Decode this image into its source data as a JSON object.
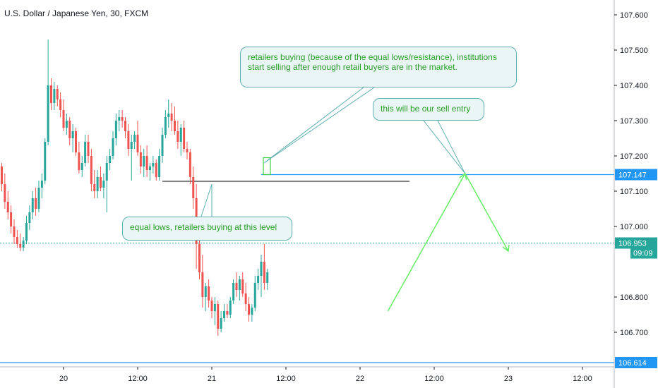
{
  "title": "U.S. Dollar / Japanese Yen, 30, FXCM",
  "colors": {
    "up": "#26a69a",
    "down": "#ef5350",
    "blue_line": "#2196f3",
    "arrow_green": "#66ee66",
    "callout_text": "#2a9d2a"
  },
  "callouts": {
    "retailers": "retailers buying (because of the equal lows/resistance), institutions start selling after enough retail buyers are in the market.",
    "sell_entry": "this will be our sell entry",
    "equal_lows": "equal lows, retailers buying at this level"
  },
  "price_labels": {
    "resistance": "107.147",
    "current": "106.953",
    "countdown": "09:09",
    "support": "106.614"
  },
  "chart_data": {
    "type": "candlestick",
    "title": "U.S. Dollar / Japanese Yen, 30, FXCM",
    "y_ticks": [
      "107.600",
      "107.500",
      "107.400",
      "107.300",
      "107.200",
      "107.100",
      "107.000",
      "106.800",
      "106.700"
    ],
    "y_tick_values": [
      107.6,
      107.5,
      107.4,
      107.3,
      107.2,
      107.1,
      107.0,
      106.8,
      106.7
    ],
    "x_ticks": [
      "20",
      "12:00",
      "21",
      "12:00",
      "22",
      "12:00",
      "23",
      "12:00"
    ],
    "x_tick_hours": [
      0,
      12,
      24,
      36,
      48,
      60,
      72,
      84
    ],
    "ylim": [
      106.6,
      107.65
    ],
    "xlim_hours": [
      -10,
      90
    ],
    "horizontal_lines": [
      {
        "name": "resistance",
        "price": 107.147
      },
      {
        "name": "current",
        "price": 106.953
      },
      {
        "name": "support",
        "price": 106.614
      },
      {
        "name": "equal-lows",
        "price": 107.128,
        "from_hour": 16,
        "to_hour": 56
      }
    ],
    "projection_path": [
      [
        52.5,
        106.76
      ],
      [
        65,
        107.15
      ],
      [
        72,
        106.93
      ]
    ],
    "candles": [
      [
        -10,
        107.17,
        107.18,
        107.1,
        107.12
      ],
      [
        -9.5,
        107.12,
        107.15,
        107.05,
        107.07
      ],
      [
        -9,
        107.07,
        107.1,
        107.02,
        107.04
      ],
      [
        -8.5,
        107.04,
        107.06,
        106.98,
        107.0
      ],
      [
        -8,
        107.0,
        107.02,
        106.95,
        106.97
      ],
      [
        -7.5,
        106.97,
        106.99,
        106.94,
        106.95
      ],
      [
        -7,
        106.95,
        106.98,
        106.93,
        106.94
      ],
      [
        -6.5,
        106.94,
        106.97,
        106.93,
        106.96
      ],
      [
        -6,
        106.96,
        107.03,
        106.95,
        107.01
      ],
      [
        -5.5,
        107.01,
        107.06,
        106.99,
        107.04
      ],
      [
        -5,
        107.04,
        107.1,
        107.02,
        107.08
      ],
      [
        -4.5,
        107.08,
        107.11,
        107.03,
        107.05
      ],
      [
        -4,
        107.05,
        107.13,
        107.04,
        107.11
      ],
      [
        -3.5,
        107.11,
        107.15,
        107.08,
        107.13
      ],
      [
        -3,
        107.13,
        107.25,
        107.12,
        107.24
      ],
      [
        -2.5,
        107.24,
        107.53,
        107.23,
        107.4
      ],
      [
        -2,
        107.4,
        107.42,
        107.33,
        107.35
      ],
      [
        -1.5,
        107.35,
        107.41,
        107.33,
        107.39
      ],
      [
        -1,
        107.39,
        107.4,
        107.34,
        107.36
      ],
      [
        -0.5,
        107.36,
        107.38,
        107.31,
        107.33
      ],
      [
        0,
        107.33,
        107.36,
        107.27,
        107.28
      ],
      [
        0.5,
        107.28,
        107.32,
        107.26,
        107.3
      ],
      [
        1,
        107.3,
        107.31,
        107.23,
        107.25
      ],
      [
        1.5,
        107.25,
        107.29,
        107.21,
        107.27
      ],
      [
        2,
        107.27,
        107.28,
        107.2,
        107.21
      ],
      [
        2.5,
        107.21,
        107.24,
        107.15,
        107.16
      ],
      [
        3,
        107.16,
        107.2,
        107.14,
        107.18
      ],
      [
        3.5,
        107.18,
        107.26,
        107.17,
        107.24
      ],
      [
        4,
        107.24,
        107.26,
        107.18,
        107.2
      ],
      [
        4.5,
        107.2,
        107.22,
        107.1,
        107.12
      ],
      [
        5,
        107.12,
        107.16,
        107.08,
        107.1
      ],
      [
        5.5,
        107.1,
        107.16,
        107.08,
        107.14
      ],
      [
        6,
        107.14,
        107.17,
        107.1,
        107.11
      ],
      [
        6.5,
        107.11,
        107.15,
        107.08,
        107.13
      ],
      [
        7,
        107.13,
        107.2,
        107.04,
        107.18
      ],
      [
        7.5,
        107.18,
        107.22,
        107.16,
        107.2
      ],
      [
        8,
        107.2,
        107.27,
        107.19,
        107.25
      ],
      [
        8.5,
        107.25,
        107.32,
        107.23,
        107.3
      ],
      [
        9,
        107.3,
        107.33,
        107.27,
        107.31
      ],
      [
        9.5,
        107.31,
        107.33,
        107.28,
        107.3
      ],
      [
        10,
        107.3,
        107.31,
        107.25,
        107.27
      ],
      [
        10.5,
        107.27,
        107.29,
        107.2,
        107.22
      ],
      [
        11,
        107.22,
        107.26,
        107.13,
        107.24
      ],
      [
        11.5,
        107.24,
        107.27,
        107.22,
        107.26
      ],
      [
        12,
        107.26,
        107.3,
        107.2,
        107.21
      ],
      [
        12.5,
        107.21,
        107.23,
        107.15,
        107.17
      ],
      [
        13,
        107.17,
        107.22,
        107.14,
        107.2
      ],
      [
        13.5,
        107.2,
        107.23,
        107.14,
        107.16
      ],
      [
        14,
        107.16,
        107.18,
        107.13,
        107.17
      ],
      [
        14.5,
        107.17,
        107.2,
        107.15,
        107.18
      ],
      [
        15,
        107.18,
        107.19,
        107.13,
        107.14
      ],
      [
        15.5,
        107.14,
        107.22,
        107.13,
        107.2
      ],
      [
        16,
        107.2,
        107.28,
        107.18,
        107.26
      ],
      [
        16.5,
        107.26,
        107.33,
        107.25,
        107.31
      ],
      [
        17,
        107.31,
        107.36,
        107.28,
        107.32
      ],
      [
        17.5,
        107.32,
        107.35,
        107.27,
        107.3
      ],
      [
        18,
        107.3,
        107.34,
        107.26,
        107.27
      ],
      [
        18.5,
        107.27,
        107.3,
        107.22,
        107.24
      ],
      [
        19,
        107.24,
        107.29,
        107.2,
        107.28
      ],
      [
        19.5,
        107.28,
        107.3,
        107.21,
        107.22
      ],
      [
        20,
        107.22,
        107.24,
        107.19,
        107.21
      ],
      [
        20.5,
        107.21,
        107.22,
        107.12,
        107.14
      ],
      [
        21,
        107.14,
        107.17,
        107.05,
        107.08
      ],
      [
        21.5,
        107.08,
        107.12,
        106.88,
        106.95
      ],
      [
        22,
        106.95,
        106.98,
        106.85,
        106.87
      ],
      [
        22.5,
        106.87,
        106.92,
        106.77,
        106.8
      ],
      [
        23,
        106.8,
        106.84,
        106.76,
        106.83
      ],
      [
        23.5,
        106.83,
        106.85,
        106.77,
        106.79
      ],
      [
        24,
        106.79,
        106.8,
        106.74,
        106.76
      ],
      [
        24.5,
        106.76,
        106.8,
        106.72,
        106.78
      ],
      [
        25,
        106.78,
        106.79,
        106.69,
        106.71
      ],
      [
        25.5,
        106.71,
        106.76,
        106.7,
        106.74
      ],
      [
        26,
        106.74,
        106.78,
        106.73,
        106.76
      ],
      [
        26.5,
        106.76,
        106.78,
        106.74,
        106.75
      ],
      [
        27,
        106.75,
        106.8,
        106.74,
        106.79
      ],
      [
        27.5,
        106.79,
        106.85,
        106.78,
        106.84
      ],
      [
        28,
        106.84,
        106.87,
        106.8,
        106.82
      ],
      [
        28.5,
        106.82,
        106.86,
        106.79,
        106.85
      ],
      [
        29,
        106.85,
        106.87,
        106.8,
        106.81
      ],
      [
        29.5,
        106.81,
        106.84,
        106.76,
        106.78
      ],
      [
        30,
        106.78,
        106.8,
        106.73,
        106.75
      ],
      [
        30.5,
        106.75,
        106.78,
        106.73,
        106.77
      ],
      [
        31,
        106.77,
        106.86,
        106.76,
        106.84
      ],
      [
        31.5,
        106.84,
        106.88,
        106.82,
        106.86
      ],
      [
        32,
        106.86,
        106.92,
        106.8,
        106.9
      ],
      [
        32.5,
        106.9,
        106.95,
        106.82,
        106.84
      ],
      [
        33,
        106.84,
        106.88,
        106.82,
        106.87
      ]
    ]
  }
}
